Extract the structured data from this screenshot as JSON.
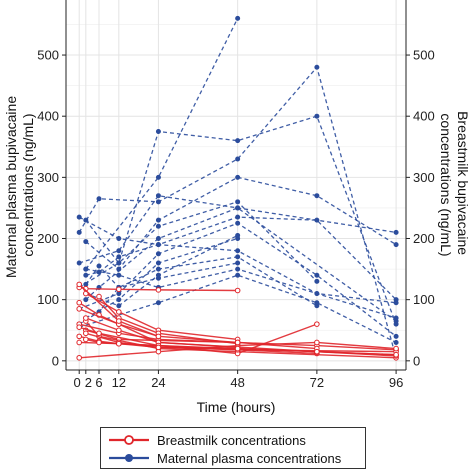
{
  "chart_data": {
    "type": "line",
    "xlabel": "Time (hours)",
    "ylabel_left": "Maternal plasma bupivacaine concentrations (ng/mL)",
    "ylabel_right": "Breastmilk bupivacaine concentrations (ng/mL)",
    "x_ticks": [
      0,
      2,
      6,
      12,
      24,
      48,
      72,
      96
    ],
    "y_ticks": [
      0,
      100,
      200,
      300,
      400,
      500
    ],
    "xlim": [
      -4,
      99
    ],
    "ylim": [
      -15,
      590
    ],
    "grid": true,
    "legend_position": "bottom",
    "colors": {
      "breastmilk": "#e0262b",
      "plasma": "#2b4c9c"
    },
    "series": [
      {
        "name": "Breastmilk concentrations",
        "style": "solid, open circle markers",
        "color": "#e0262b",
        "lines": [
          {
            "x": [
              0,
              2,
              12,
              24,
              48
            ],
            "y": [
              120,
              118,
              117,
              116,
              115
            ]
          },
          {
            "x": [
              0,
              6,
              12,
              24
            ],
            "y": [
              95,
              75,
              60,
              40
            ]
          },
          {
            "x": [
              2,
              12,
              24,
              48
            ],
            "y": [
              110,
              80,
              50,
              35
            ]
          },
          {
            "x": [
              0,
              12,
              24,
              48,
              72,
              96
            ],
            "y": [
              60,
              45,
              35,
              30,
              25,
              18
            ]
          },
          {
            "x": [
              2,
              12,
              48
            ],
            "y": [
              50,
              35,
              30
            ]
          },
          {
            "x": [
              0,
              6,
              12,
              24,
              48,
              96
            ],
            "y": [
              40,
              32,
              28,
              25,
              20,
              10
            ]
          },
          {
            "x": [
              0,
              12,
              24,
              48,
              72
            ],
            "y": [
              30,
              28,
              25,
              18,
              12
            ]
          },
          {
            "x": [
              2,
              6,
              24,
              48,
              96
            ],
            "y": [
              65,
              40,
              20,
              15,
              5
            ]
          },
          {
            "x": [
              0,
              12,
              24,
              48
            ],
            "y": [
              85,
              60,
              30,
              22
            ]
          },
          {
            "x": [
              2,
              12,
              24,
              72,
              96
            ],
            "y": [
              70,
              50,
              30,
              15,
              8
            ]
          },
          {
            "x": [
              0,
              6,
              24,
              48,
              72
            ],
            "y": [
              55,
              45,
              25,
              12,
              60
            ]
          },
          {
            "x": [
              2,
              12,
              24,
              48,
              96
            ],
            "y": [
              45,
              30,
              22,
              18,
              15
            ]
          },
          {
            "x": [
              0,
              24,
              48,
              72,
              96
            ],
            "y": [
              5,
              15,
              25,
              30,
              20
            ]
          },
          {
            "x": [
              6,
              12,
              24,
              48
            ],
            "y": [
              105,
              70,
              45,
              28
            ]
          },
          {
            "x": [
              0,
              12,
              24,
              48,
              72
            ],
            "y": [
              125,
              65,
              40,
              30,
              20
            ]
          },
          {
            "x": [
              2,
              6,
              12,
              24,
              48,
              72,
              96
            ],
            "y": [
              35,
              30,
              28,
              22,
              20,
              15,
              10
            ]
          }
        ]
      },
      {
        "name": "Maternal plasma concentrations",
        "style": "dashed, filled circle markers",
        "color": "#2b4c9c",
        "lines": [
          {
            "x": [
              2,
              24,
              48
            ],
            "y": [
              150,
              300,
              560
            ]
          },
          {
            "x": [
              2,
              12,
              24,
              48,
              72,
              96
            ],
            "y": [
              230,
              160,
              375,
              360,
              400,
              60
            ]
          },
          {
            "x": [
              0,
              6,
              24,
              48,
              72,
              96
            ],
            "y": [
              210,
              265,
              260,
              330,
              480,
              5
            ]
          },
          {
            "x": [
              2,
              12,
              24,
              48,
              72,
              96
            ],
            "y": [
              195,
              150,
              230,
              300,
              270,
              190
            ]
          },
          {
            "x": [
              0,
              12,
              24,
              48,
              96
            ],
            "y": [
              160,
              180,
              270,
              250,
              210
            ]
          },
          {
            "x": [
              2,
              6,
              12,
              24,
              48,
              72,
              96
            ],
            "y": [
              140,
              145,
              170,
              190,
              235,
              230,
              100
            ]
          },
          {
            "x": [
              0,
              12,
              24,
              48,
              72
            ],
            "y": [
              120,
              160,
              220,
              260,
              130
            ]
          },
          {
            "x": [
              2,
              6,
              24,
              48,
              96
            ],
            "y": [
              100,
              120,
              200,
              250,
              65
            ]
          },
          {
            "x": [
              0,
              12,
              24,
              48,
              72,
              96
            ],
            "y": [
              85,
              110,
              175,
              225,
              140,
              40
            ]
          },
          {
            "x": [
              2,
              12,
              24,
              48
            ],
            "y": [
              70,
              100,
              160,
              200
            ]
          },
          {
            "x": [
              0,
              6,
              12,
              24,
              48,
              72
            ],
            "y": [
              60,
              80,
              120,
              150,
              170,
              90
            ]
          },
          {
            "x": [
              2,
              12,
              24,
              48,
              96
            ],
            "y": [
              150,
              140,
              120,
              150,
              70
            ]
          },
          {
            "x": [
              0,
              24,
              48,
              72,
              96
            ],
            "y": [
              55,
              95,
              140,
              95,
              30
            ]
          },
          {
            "x": [
              2,
              6,
              12,
              24,
              48
            ],
            "y": [
              125,
              155,
              120,
              135,
              160
            ]
          },
          {
            "x": [
              0,
              12,
              24,
              48,
              72,
              96
            ],
            "y": [
              235,
              200,
              190,
              180,
              110,
              95
            ]
          },
          {
            "x": [
              2,
              12,
              24,
              48
            ],
            "y": [
              110,
              90,
              140,
              205
            ]
          }
        ]
      }
    ]
  }
}
